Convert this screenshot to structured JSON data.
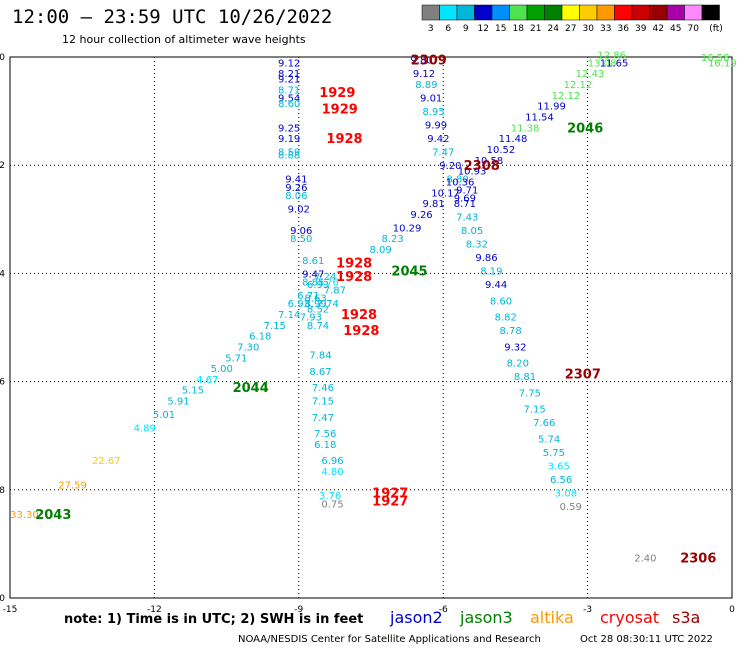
{
  "header": {
    "title": "12:00 – 23:59 UTC 10/26/2022",
    "subtitle": "12 hour collection of altimeter wave heights"
  },
  "colorbar": {
    "labels": [
      "3",
      "6",
      "9",
      "12",
      "15",
      "18",
      "21",
      "24",
      "27",
      "30",
      "33",
      "36",
      "39",
      "42",
      "45",
      "70",
      "(ft)"
    ],
    "colors": [
      "#808080",
      "#00e5ff",
      "#00b7d9",
      "#0000cc",
      "#0090ff",
      "#4de34d",
      "#00a000",
      "#008000",
      "#ffff00",
      "#ffcc00",
      "#ff9900",
      "#ff0000",
      "#cc0000",
      "#990000",
      "#aa00aa",
      "#ff88ff",
      "#000000"
    ]
  },
  "notes": {
    "text": "note:  1) Time is in UTC;  2) SWH is in feet",
    "satellites": [
      {
        "name": "jason2",
        "color": "#0000cc"
      },
      {
        "name": "jason3",
        "color": "#008000"
      },
      {
        "name": "altika",
        "color": "#ff9900"
      },
      {
        "name": "cryosat",
        "color": "#ff0000"
      },
      {
        "name": "s3a",
        "color": "#990000"
      }
    ]
  },
  "footer": {
    "left": "NOAA/NESDIS Center for Satellite Applications and Research",
    "right": "Oct 28 08:30:11 UTC 2022"
  },
  "chart_data": {
    "type": "scatter",
    "xlim": [
      -15,
      0
    ],
    "ylim": [
      -60,
      -50
    ],
    "xticks": [
      -15,
      -12,
      -9,
      -6,
      -3,
      0
    ],
    "yticks": [
      -50,
      -52,
      -54,
      -56,
      -58,
      -60
    ],
    "xtick_labels": [
      "-15",
      "-12",
      "-9",
      "-6",
      "-3",
      "0"
    ],
    "ytick_labels": [
      "-50",
      "-52",
      "-54",
      "-56",
      "-58",
      "-60"
    ],
    "grid": true,
    "points": [
      {
        "x": -9.2,
        "y": -50.1,
        "v": "9.12",
        "c": "#0000cc"
      },
      {
        "x": -9.2,
        "y": -50.3,
        "v": "8.21",
        "c": "#0000cc"
      },
      {
        "x": -9.2,
        "y": -50.4,
        "v": "9.21",
        "c": "#0000cc"
      },
      {
        "x": -9.2,
        "y": -50.6,
        "v": "8.71",
        "c": "#00b7d9"
      },
      {
        "x": -9.2,
        "y": -50.75,
        "v": "9.54",
        "c": "#0000cc"
      },
      {
        "x": -9.2,
        "y": -50.85,
        "v": "8.60",
        "c": "#00b7d9"
      },
      {
        "x": -9.2,
        "y": -51.3,
        "v": "9.25",
        "c": "#0000cc"
      },
      {
        "x": -9.2,
        "y": -51.5,
        "v": "9.19",
        "c": "#0000cc"
      },
      {
        "x": -9.2,
        "y": -51.75,
        "v": "8.59",
        "c": "#00b7d9"
      },
      {
        "x": -9.2,
        "y": -51.8,
        "v": "8.88",
        "c": "#00b7d9"
      },
      {
        "x": -9.05,
        "y": -52.25,
        "v": "9.41",
        "c": "#0000cc"
      },
      {
        "x": -9.05,
        "y": -52.4,
        "v": "9.26",
        "c": "#0000cc"
      },
      {
        "x": -9.05,
        "y": -52.55,
        "v": "8.06",
        "c": "#00b7d9"
      },
      {
        "x": -9.0,
        "y": -52.8,
        "v": "9.02",
        "c": "#0000cc"
      },
      {
        "x": -8.95,
        "y": -53.2,
        "v": "9.06",
        "c": "#0000cc"
      },
      {
        "x": -8.95,
        "y": -53.35,
        "v": "8.50",
        "c": "#00b7d9"
      },
      {
        "x": -8.7,
        "y": -53.75,
        "v": "8.61",
        "c": "#00b7d9"
      },
      {
        "x": -8.7,
        "y": -54.0,
        "v": "9.47",
        "c": "#0000cc"
      },
      {
        "x": -8.7,
        "y": -54.15,
        "v": "8.85",
        "c": "#00b7d9"
      },
      {
        "x": -8.65,
        "y": -54.45,
        "v": "8.63",
        "c": "#00b7d9"
      },
      {
        "x": -8.65,
        "y": -54.55,
        "v": "8.99",
        "c": "#00b7d9"
      },
      {
        "x": -8.6,
        "y": -54.65,
        "v": "8.52",
        "c": "#00b7d9"
      },
      {
        "x": -8.75,
        "y": -54.8,
        "v": "7.93",
        "c": "#00b7d9"
      },
      {
        "x": -8.6,
        "y": -54.95,
        "v": "8.74",
        "c": "#00b7d9"
      },
      {
        "x": -8.4,
        "y": -54.15,
        "v": "7.76",
        "c": "#00e5ff"
      },
      {
        "x": -8.25,
        "y": -54.3,
        "v": "7.87",
        "c": "#00b7d9"
      },
      {
        "x": -8.4,
        "y": -54.55,
        "v": "7.74",
        "c": "#00b7d9"
      },
      {
        "x": -8.55,
        "y": -55.5,
        "v": "7.84",
        "c": "#00b7d9"
      },
      {
        "x": -8.55,
        "y": -55.8,
        "v": "8.67",
        "c": "#00b7d9"
      },
      {
        "x": -8.5,
        "y": -56.1,
        "v": "7.46",
        "c": "#00b7d9"
      },
      {
        "x": -8.5,
        "y": -56.35,
        "v": "7.15",
        "c": "#00b7d9"
      },
      {
        "x": -8.5,
        "y": -56.65,
        "v": "7.47",
        "c": "#00b7d9"
      },
      {
        "x": -8.45,
        "y": -56.95,
        "v": "7.56",
        "c": "#00b7d9"
      },
      {
        "x": -8.45,
        "y": -57.15,
        "v": "6.18",
        "c": "#00b7d9"
      },
      {
        "x": -8.3,
        "y": -57.45,
        "v": "6.96",
        "c": "#00b7d9"
      },
      {
        "x": -8.3,
        "y": -57.65,
        "v": "4.80",
        "c": "#00e5ff"
      },
      {
        "x": -8.35,
        "y": -58.1,
        "v": "3.76",
        "c": "#00e5ff"
      },
      {
        "x": -8.3,
        "y": -58.25,
        "v": "0.75",
        "c": "#808080"
      },
      {
        "x": -6.45,
        "y": -50.05,
        "v": "9.80",
        "c": "#0000cc"
      },
      {
        "x": -6.4,
        "y": -50.3,
        "v": "9.12",
        "c": "#0000cc"
      },
      {
        "x": -6.35,
        "y": -50.5,
        "v": "8.89",
        "c": "#00b7d9"
      },
      {
        "x": -6.25,
        "y": -50.75,
        "v": "9.01",
        "c": "#0000cc"
      },
      {
        "x": -6.2,
        "y": -51.0,
        "v": "8.95",
        "c": "#00b7d9"
      },
      {
        "x": -6.15,
        "y": -51.25,
        "v": "9.99",
        "c": "#0000cc"
      },
      {
        "x": -6.1,
        "y": -51.5,
        "v": "9.42",
        "c": "#0000cc"
      },
      {
        "x": -6.0,
        "y": -51.75,
        "v": "7.47",
        "c": "#00b7d9"
      },
      {
        "x": -5.85,
        "y": -52.0,
        "v": "9.20",
        "c": "#0000cc"
      },
      {
        "x": -5.7,
        "y": -52.25,
        "v": "8.80",
        "c": "#00b7d9"
      },
      {
        "x": -5.5,
        "y": -52.45,
        "v": "9.71",
        "c": "#0000cc"
      },
      {
        "x": -5.55,
        "y": -52.6,
        "v": "9.69",
        "c": "#0000cc"
      },
      {
        "x": -5.55,
        "y": -52.7,
        "v": "8.71",
        "c": "#0000cc"
      },
      {
        "x": -5.5,
        "y": -52.95,
        "v": "7.43",
        "c": "#00b7d9"
      },
      {
        "x": -5.4,
        "y": -53.2,
        "v": "8.05",
        "c": "#00b7d9"
      },
      {
        "x": -5.3,
        "y": -53.45,
        "v": "8.32",
        "c": "#00b7d9"
      },
      {
        "x": -5.1,
        "y": -53.7,
        "v": "9.86",
        "c": "#0000cc"
      },
      {
        "x": -5.0,
        "y": -53.95,
        "v": "8.19",
        "c": "#00b7d9"
      },
      {
        "x": -4.9,
        "y": -54.2,
        "v": "9.44",
        "c": "#0000cc"
      },
      {
        "x": -4.8,
        "y": -54.5,
        "v": "8.60",
        "c": "#00b7d9"
      },
      {
        "x": -4.7,
        "y": -54.8,
        "v": "8.82",
        "c": "#00b7d9"
      },
      {
        "x": -4.6,
        "y": -55.05,
        "v": "8.78",
        "c": "#00b7d9"
      },
      {
        "x": -4.5,
        "y": -55.35,
        "v": "9.32",
        "c": "#0000cc"
      },
      {
        "x": -4.45,
        "y": -55.65,
        "v": "8.20",
        "c": "#00b7d9"
      },
      {
        "x": -4.3,
        "y": -55.9,
        "v": "8.81",
        "c": "#00b7d9"
      },
      {
        "x": -4.2,
        "y": -56.2,
        "v": "7.75",
        "c": "#00b7d9"
      },
      {
        "x": -4.1,
        "y": -56.5,
        "v": "7.15",
        "c": "#00b7d9"
      },
      {
        "x": -3.9,
        "y": -56.75,
        "v": "7.66",
        "c": "#00b7d9"
      },
      {
        "x": -3.8,
        "y": -57.05,
        "v": "5.74",
        "c": "#00b7d9"
      },
      {
        "x": -3.7,
        "y": -57.3,
        "v": "5.75",
        "c": "#00b7d9"
      },
      {
        "x": -3.6,
        "y": -57.55,
        "v": "3.65",
        "c": "#00e5ff"
      },
      {
        "x": -3.55,
        "y": -57.8,
        "v": "6.56",
        "c": "#00b7d9"
      },
      {
        "x": -3.45,
        "y": -58.05,
        "v": "3.08",
        "c": "#00e5ff"
      },
      {
        "x": -3.35,
        "y": -58.3,
        "v": "0.59",
        "c": "#808080"
      },
      {
        "x": -14.7,
        "y": -58.45,
        "v": "33.30",
        "c": "#ff9900"
      },
      {
        "x": -13.7,
        "y": -57.9,
        "v": "27.59",
        "c": "#ff9900"
      },
      {
        "x": -13.0,
        "y": -57.45,
        "v": "22.67",
        "c": "#ffcc00"
      },
      {
        "x": -12.2,
        "y": -56.85,
        "v": "4.89",
        "c": "#00e5ff"
      },
      {
        "x": -11.8,
        "y": -56.6,
        "v": "5.01",
        "c": "#00b7d9"
      },
      {
        "x": -11.5,
        "y": -56.35,
        "v": "5.91",
        "c": "#00b7d9"
      },
      {
        "x": -11.2,
        "y": -56.15,
        "v": "5.15",
        "c": "#00b7d9"
      },
      {
        "x": -10.9,
        "y": -55.95,
        "v": "4.67",
        "c": "#00e5ff"
      },
      {
        "x": -10.6,
        "y": -55.75,
        "v": "5.00",
        "c": "#00b7d9"
      },
      {
        "x": -10.3,
        "y": -55.55,
        "v": "5.71",
        "c": "#00b7d9"
      },
      {
        "x": -10.05,
        "y": -55.35,
        "v": "7.30",
        "c": "#00b7d9"
      },
      {
        "x": -9.8,
        "y": -55.15,
        "v": "6.18",
        "c": "#00b7d9"
      },
      {
        "x": -9.5,
        "y": -54.95,
        "v": "7.15",
        "c": "#00b7d9"
      },
      {
        "x": -9.2,
        "y": -54.75,
        "v": "7.14",
        "c": "#00b7d9"
      },
      {
        "x": -9.0,
        "y": -54.55,
        "v": "6.93",
        "c": "#00b7d9"
      },
      {
        "x": -8.8,
        "y": -54.4,
        "v": "6.71",
        "c": "#00b7d9"
      },
      {
        "x": -8.6,
        "y": -54.2,
        "v": "6.93",
        "c": "#00b7d9"
      },
      {
        "x": -8.45,
        "y": -54.05,
        "v": "7.24",
        "c": "#00b7d9"
      },
      {
        "x": -7.3,
        "y": -53.55,
        "v": "8.09",
        "c": "#00b7d9"
      },
      {
        "x": -7.05,
        "y": -53.35,
        "v": "8.23",
        "c": "#00b7d9"
      },
      {
        "x": -6.75,
        "y": -53.15,
        "v": "10.29",
        "c": "#0000cc"
      },
      {
        "x": -6.45,
        "y": -52.9,
        "v": "9.26",
        "c": "#0000cc"
      },
      {
        "x": -6.2,
        "y": -52.7,
        "v": "9.81",
        "c": "#0000cc"
      },
      {
        "x": -5.95,
        "y": -52.5,
        "v": "10.17",
        "c": "#0000cc"
      },
      {
        "x": -5.65,
        "y": -52.3,
        "v": "10.36",
        "c": "#0000cc"
      },
      {
        "x": -5.4,
        "y": -52.1,
        "v": "10.93",
        "c": "#0000cc"
      },
      {
        "x": -5.05,
        "y": -51.9,
        "v": "10.58",
        "c": "#0000cc"
      },
      {
        "x": -4.8,
        "y": -51.7,
        "v": "10.52",
        "c": "#0000cc"
      },
      {
        "x": -4.55,
        "y": -51.5,
        "v": "11.48",
        "c": "#0000cc"
      },
      {
        "x": -4.3,
        "y": -51.3,
        "v": "11.38",
        "c": "#4de34d"
      },
      {
        "x": -4.0,
        "y": -51.1,
        "v": "11.54",
        "c": "#0000cc"
      },
      {
        "x": -3.75,
        "y": -50.9,
        "v": "11.99",
        "c": "#0000cc"
      },
      {
        "x": -3.45,
        "y": -50.7,
        "v": "12.12",
        "c": "#4de34d"
      },
      {
        "x": -3.2,
        "y": -50.5,
        "v": "12.12",
        "c": "#4de34d"
      },
      {
        "x": -2.95,
        "y": -50.3,
        "v": "12.43",
        "c": "#4de34d"
      },
      {
        "x": -2.7,
        "y": -50.1,
        "v": "13.08",
        "c": "#4de34d"
      },
      {
        "x": -2.5,
        "y": -49.95,
        "v": "12.86",
        "c": "#4de34d"
      },
      {
        "x": -2.45,
        "y": -50.1,
        "v": "11.65",
        "c": "#0000cc"
      },
      {
        "x": -0.35,
        "y": -50.0,
        "v": "16.58",
        "c": "#4de34d"
      },
      {
        "x": -0.2,
        "y": -50.1,
        "v": "16.19",
        "c": "#4de34d"
      },
      {
        "x": -1.8,
        "y": -59.25,
        "v": "2.40",
        "c": "#808080"
      }
    ],
    "labels": [
      {
        "x": -6.3,
        "y": -50.05,
        "v": "2309",
        "c": "#990000"
      },
      {
        "x": -8.2,
        "y": -50.65,
        "v": "1929",
        "c": "#ff0000"
      },
      {
        "x": -8.15,
        "y": -50.95,
        "v": "1929",
        "c": "#ff0000"
      },
      {
        "x": -8.05,
        "y": -51.5,
        "v": "1928",
        "c": "#ff0000"
      },
      {
        "x": -5.2,
        "y": -52.0,
        "v": "2308",
        "c": "#990000"
      },
      {
        "x": -3.05,
        "y": -51.3,
        "v": "2046",
        "c": "#008000"
      },
      {
        "x": -7.85,
        "y": -53.8,
        "v": "1928",
        "c": "#ff0000"
      },
      {
        "x": -7.85,
        "y": -54.05,
        "v": "1928",
        "c": "#ff0000"
      },
      {
        "x": -6.7,
        "y": -53.95,
        "v": "2045",
        "c": "#008000"
      },
      {
        "x": -7.75,
        "y": -54.75,
        "v": "1928",
        "c": "#ff0000"
      },
      {
        "x": -7.7,
        "y": -55.05,
        "v": "1928",
        "c": "#ff0000"
      },
      {
        "x": -3.1,
        "y": -55.85,
        "v": "2307",
        "c": "#990000"
      },
      {
        "x": -10.0,
        "y": -56.1,
        "v": "2044",
        "c": "#008000"
      },
      {
        "x": -7.1,
        "y": -58.05,
        "v": "1927",
        "c": "#ff0000"
      },
      {
        "x": -7.1,
        "y": -58.2,
        "v": "1927",
        "c": "#ff0000"
      },
      {
        "x": -14.1,
        "y": -58.45,
        "v": "2043",
        "c": "#008000"
      },
      {
        "x": -0.7,
        "y": -59.25,
        "v": "2306",
        "c": "#990000"
      }
    ]
  }
}
